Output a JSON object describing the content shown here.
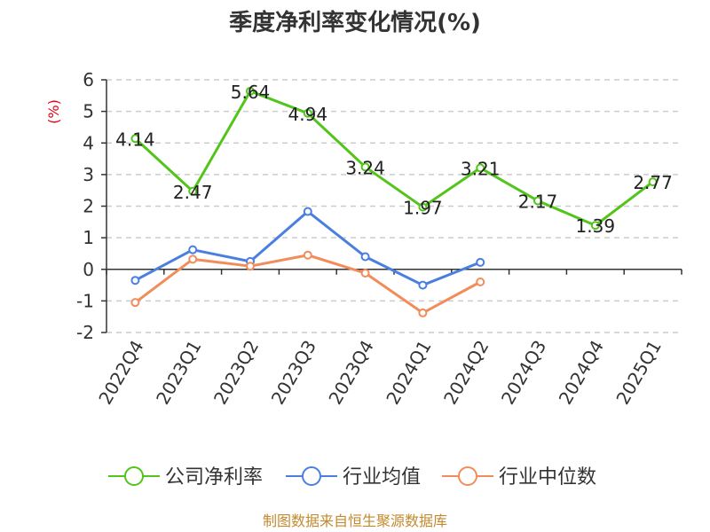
{
  "chart_data": {
    "type": "line",
    "title": "季度净利率变化情况(%)",
    "unit_label": "(%)",
    "categories": [
      "2022Q4",
      "2023Q1",
      "2023Q2",
      "2023Q3",
      "2023Q4",
      "2024Q1",
      "2024Q2",
      "2024Q3",
      "2024Q4",
      "2025Q1"
    ],
    "ylim": [
      -2,
      6
    ],
    "yticks": [
      -2,
      -1,
      0,
      1,
      2,
      3,
      4,
      5,
      6
    ],
    "grid": true,
    "legend_position": "bottom",
    "series": [
      {
        "name": "公司净利率",
        "color": "#52c41a",
        "values": [
          4.14,
          2.47,
          5.64,
          4.94,
          3.24,
          1.97,
          3.21,
          2.17,
          1.39,
          2.77
        ],
        "labels": [
          "4.14",
          "2.47",
          "5.64",
          "4.94",
          "3.24",
          "1.97",
          "3.21",
          "2.17",
          "1.39",
          "2.77"
        ]
      },
      {
        "name": "行业均值",
        "color": "#4a7fe0",
        "values": [
          -0.35,
          0.62,
          0.25,
          1.83,
          0.4,
          -0.5,
          0.22,
          null,
          null,
          null
        ]
      },
      {
        "name": "行业中位数",
        "color": "#f28c5a",
        "values": [
          -1.05,
          0.32,
          0.1,
          0.45,
          -0.12,
          -1.38,
          -0.4,
          null,
          null,
          null
        ]
      }
    ],
    "source": "制图数据来自恒生聚源数据库"
  }
}
